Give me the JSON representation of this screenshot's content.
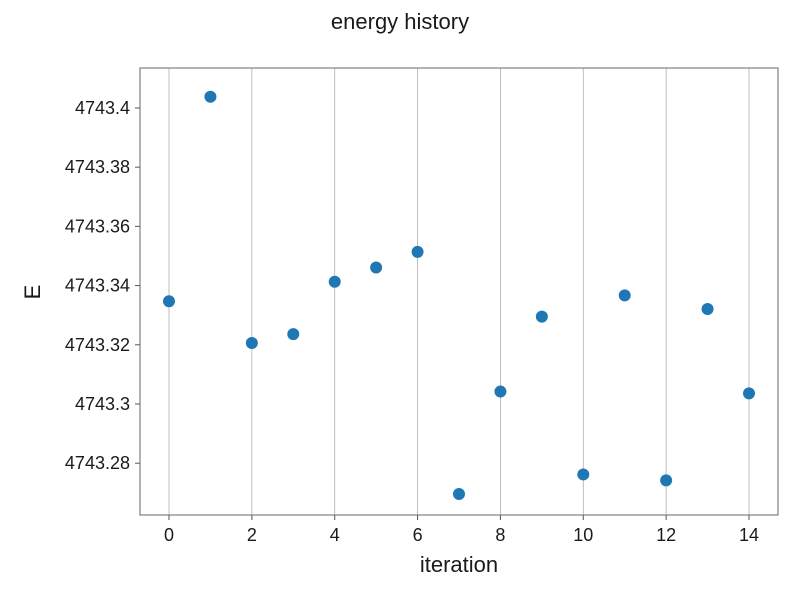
{
  "chart_data": {
    "type": "scatter",
    "title": "energy history",
    "xlabel": "iteration",
    "ylabel": "E",
    "xlim": [
      -0.7,
      14.7
    ],
    "ylim": [
      4743.2625,
      4743.4135
    ],
    "xticks": [
      0,
      2,
      4,
      6,
      8,
      10,
      12,
      14
    ],
    "xtick_labels": [
      "0",
      "2",
      "4",
      "6",
      "8",
      "10",
      "12",
      "14"
    ],
    "yticks": [
      4743.28,
      4743.3,
      4743.32,
      4743.34,
      4743.36,
      4743.38,
      4743.4
    ],
    "ytick_labels": [
      "4743.28",
      "4743.3",
      "4743.32",
      "4743.34",
      "4743.36",
      "4743.38",
      "4743.4"
    ],
    "grid": "vertical",
    "series": [
      {
        "color": "#1f77b4",
        "x": [
          0,
          1,
          2,
          3,
          4,
          5,
          6,
          7,
          8,
          9,
          10,
          11,
          12,
          13,
          14
        ],
        "y": [
          4743.3347,
          4743.4038,
          4743.3206,
          4743.3236,
          4743.3413,
          4743.3461,
          4743.3514,
          4743.2696,
          4743.3042,
          4743.3295,
          4743.2762,
          4743.3367,
          4743.2742,
          4743.3321,
          4743.3036
        ]
      }
    ]
  }
}
